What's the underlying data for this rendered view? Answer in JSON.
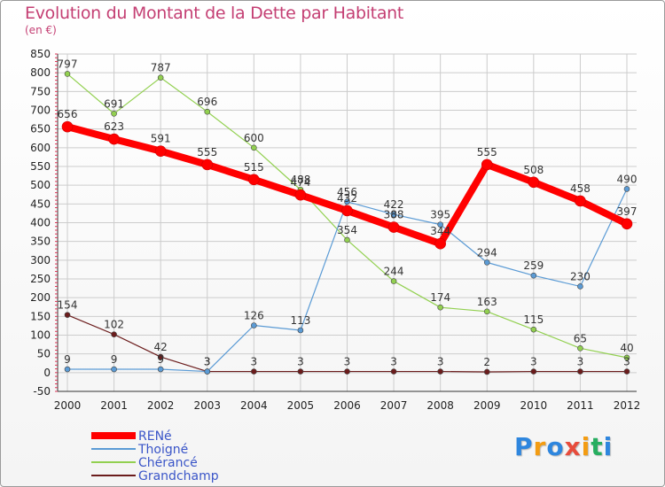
{
  "chart_data": {
    "type": "line",
    "title": "Evolution du Montant de la Dette par Habitant",
    "subtitle": "(en €)",
    "x": [
      "2000",
      "2001",
      "2002",
      "2003",
      "2004",
      "2005",
      "2006",
      "2007",
      "2008",
      "2009",
      "2010",
      "2011",
      "2012"
    ],
    "ylim": [
      -50,
      850
    ],
    "yticks": [
      -50,
      0,
      50,
      100,
      150,
      200,
      250,
      300,
      350,
      400,
      450,
      500,
      550,
      600,
      650,
      700,
      750,
      800,
      850
    ],
    "grid": true,
    "legend_position": "bottom-left",
    "series": [
      {
        "name": "RENé",
        "color": "#ff0000",
        "values": [
          656,
          623,
          591,
          555,
          515,
          474,
          432,
          388,
          344,
          555,
          508,
          458,
          397
        ]
      },
      {
        "name": "Thoigné",
        "color": "#5b9bd5",
        "values": [
          9,
          9,
          9,
          3,
          126,
          113,
          456,
          422,
          395,
          294,
          259,
          230,
          490
        ]
      },
      {
        "name": "Chérancé",
        "color": "#92d050",
        "values": [
          797,
          691,
          787,
          696,
          600,
          488,
          354,
          244,
          174,
          163,
          115,
          65,
          40
        ]
      },
      {
        "name": "Grandchamp",
        "color": "#6b1c1c",
        "values": [
          154,
          102,
          42,
          3,
          3,
          3,
          3,
          3,
          3,
          2,
          3,
          3,
          3
        ]
      }
    ]
  },
  "logo": {
    "letters": [
      "P",
      "r",
      "o",
      "x",
      "i",
      "t",
      "i"
    ],
    "colors": [
      "#2e86de",
      "#f39c12",
      "#2e86de",
      "#e74c3c",
      "#f39c12",
      "#27ae60",
      "#2e86de"
    ]
  }
}
